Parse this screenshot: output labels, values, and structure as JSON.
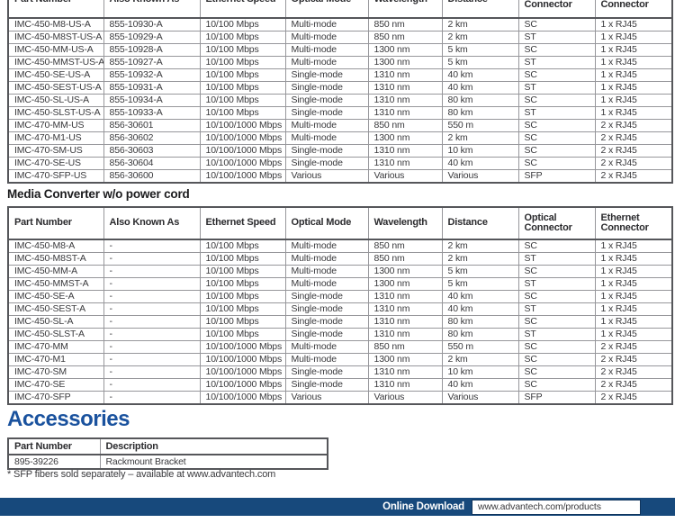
{
  "products_with_cord": {
    "columns": [
      "Part Number",
      "Also Known As",
      "Ethernet Speed",
      "Optical Mode",
      "Wavelength",
      "Distance",
      "Optical Connector",
      "Ethernet Connector"
    ],
    "rows": [
      [
        "IMC-450-M8-US-A",
        "855-10930-A",
        "10/100 Mbps",
        "Multi-mode",
        "850 nm",
        "2 km",
        "SC",
        "1 x RJ45"
      ],
      [
        "IMC-450-M8ST-US-A",
        "855-10929-A",
        "10/100 Mbps",
        "Multi-mode",
        "850 nm",
        "2 km",
        "ST",
        "1 x RJ45"
      ],
      [
        "IMC-450-MM-US-A",
        "855-10928-A",
        "10/100 Mbps",
        "Multi-mode",
        "1300 nm",
        "5 km",
        "SC",
        "1 x RJ45"
      ],
      [
        "IMC-450-MMST-US-A",
        "855-10927-A",
        "10/100 Mbps",
        "Multi-mode",
        "1300 nm",
        "5 km",
        "ST",
        "1 x RJ45"
      ],
      [
        "IMC-450-SE-US-A",
        "855-10932-A",
        "10/100 Mbps",
        "Single-mode",
        "1310 nm",
        "40 km",
        "SC",
        "1 x RJ45"
      ],
      [
        "IMC-450-SEST-US-A",
        "855-10931-A",
        "10/100 Mbps",
        "Single-mode",
        "1310 nm",
        "40 km",
        "ST",
        "1 x RJ45"
      ],
      [
        "IMC-450-SL-US-A",
        "855-10934-A",
        "10/100 Mbps",
        "Single-mode",
        "1310 nm",
        "80 km",
        "SC",
        "1 x RJ45"
      ],
      [
        "IMC-450-SLST-US-A",
        "855-10933-A",
        "10/100 Mbps",
        "Single-mode",
        "1310 nm",
        "80 km",
        "ST",
        "1 x RJ45"
      ],
      [
        "IMC-470-MM-US",
        "856-30601",
        "10/100/1000 Mbps",
        "Multi-mode",
        "850 nm",
        "550 m",
        "SC",
        "2 x RJ45"
      ],
      [
        "IMC-470-M1-US",
        "856-30602",
        "10/100/1000 Mbps",
        "Multi-mode",
        "1300 nm",
        "2 km",
        "SC",
        "2 x RJ45"
      ],
      [
        "IMC-470-SM-US",
        "856-30603",
        "10/100/1000 Mbps",
        "Single-mode",
        "1310 nm",
        "10 km",
        "SC",
        "2 x RJ45"
      ],
      [
        "IMC-470-SE-US",
        "856-30604",
        "10/100/1000 Mbps",
        "Single-mode",
        "1310 nm",
        "40 km",
        "SC",
        "2 x RJ45"
      ],
      [
        "IMC-470-SFP-US",
        "856-30600",
        "10/100/1000 Mbps",
        "Various",
        "Various",
        "Various",
        "SFP",
        "2 x RJ45"
      ]
    ]
  },
  "products_without_cord": {
    "heading": "Media Converter w/o power cord",
    "columns": [
      "Part Number",
      "Also Known As",
      "Ethernet Speed",
      "Optical Mode",
      "Wavelength",
      "Distance",
      "Optical Connector",
      "Ethernet Connector"
    ],
    "rows": [
      [
        "IMC-450-M8-A",
        "-",
        "10/100 Mbps",
        "Multi-mode",
        "850 nm",
        "2 km",
        "SC",
        "1 x RJ45"
      ],
      [
        "IMC-450-M8ST-A",
        "-",
        "10/100 Mbps",
        "Multi-mode",
        "850 nm",
        "2 km",
        "ST",
        "1 x RJ45"
      ],
      [
        "IMC-450-MM-A",
        "-",
        "10/100 Mbps",
        "Multi-mode",
        "1300 nm",
        "5 km",
        "SC",
        "1 x RJ45"
      ],
      [
        "IMC-450-MMST-A",
        "-",
        "10/100 Mbps",
        "Multi-mode",
        "1300 nm",
        "5 km",
        "ST",
        "1 x RJ45"
      ],
      [
        "IMC-450-SE-A",
        "-",
        "10/100 Mbps",
        "Single-mode",
        "1310 nm",
        "40 km",
        "SC",
        "1 x RJ45"
      ],
      [
        "IMC-450-SEST-A",
        "-",
        "10/100 Mbps",
        "Single-mode",
        "1310 nm",
        "40 km",
        "ST",
        "1 x RJ45"
      ],
      [
        "IMC-450-SL-A",
        "-",
        "10/100 Mbps",
        "Single-mode",
        "1310 nm",
        "80 km",
        "SC",
        "1 x RJ45"
      ],
      [
        "IMC-450-SLST-A",
        "-",
        "10/100 Mbps",
        "Single-mode",
        "1310 nm",
        "80 km",
        "ST",
        "1 x RJ45"
      ],
      [
        "IMC-470-MM",
        "-",
        "10/100/1000 Mbps",
        "Multi-mode",
        "850 nm",
        "550 m",
        "SC",
        "2 x RJ45"
      ],
      [
        "IMC-470-M1",
        "-",
        "10/100/1000 Mbps",
        "Multi-mode",
        "1300 nm",
        "2 km",
        "SC",
        "2 x RJ45"
      ],
      [
        "IMC-470-SM",
        "-",
        "10/100/1000 Mbps",
        "Single-mode",
        "1310 nm",
        "10 km",
        "SC",
        "2 x RJ45"
      ],
      [
        "IMC-470-SE",
        "-",
        "10/100/1000 Mbps",
        "Single-mode",
        "1310 nm",
        "40 km",
        "SC",
        "2 x RJ45"
      ],
      [
        "IMC-470-SFP",
        "-",
        "10/100/1000 Mbps",
        "Various",
        "Various",
        "Various",
        "SFP",
        "2 x RJ45"
      ]
    ]
  },
  "accessories": {
    "heading": "Accessories",
    "columns": [
      "Part Number",
      "Description"
    ],
    "rows": [
      [
        "895-39226",
        "Rackmount Bracket"
      ]
    ]
  },
  "footnote": "* SFP fibers sold separately – available at www.advantech.com",
  "footer": {
    "label": "Online Download",
    "url": "www.advantech.com/products"
  },
  "colors": {
    "accent_blue": "#1a529e",
    "footer_navy": "#17497c"
  }
}
